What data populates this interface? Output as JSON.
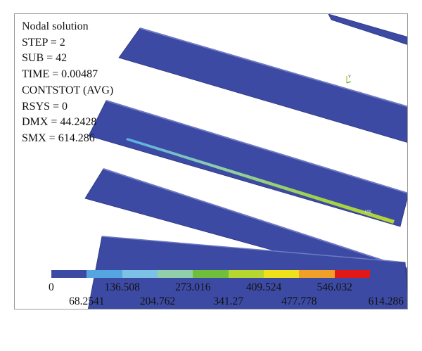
{
  "info": {
    "line1": "Nodal solution",
    "line2": "STEP = 2",
    "line3": "SUB = 42",
    "line4": "TIME = 0.00487",
    "line5": "CONTSTOT (AVG)",
    "line6": "RSYS = 0",
    "line7": "DMX = 44.2428",
    "line8": "SMX = 614.286"
  },
  "markers": {
    "triad_label": "Y",
    "mx_label": "MX"
  },
  "legend": {
    "colors": [
      "#3d4aa3",
      "#55a6e0",
      "#7dc2e6",
      "#8fcfaa",
      "#6fbe3c",
      "#b6d630",
      "#f0e21a",
      "#f0a028",
      "#e01818"
    ],
    "labels_top": [
      "0",
      "136.508",
      "273.016",
      "409.524",
      "546.032"
    ],
    "labels_bottom": [
      "68.2541",
      "204.762",
      "341.27",
      "477.778",
      "614.286"
    ]
  }
}
